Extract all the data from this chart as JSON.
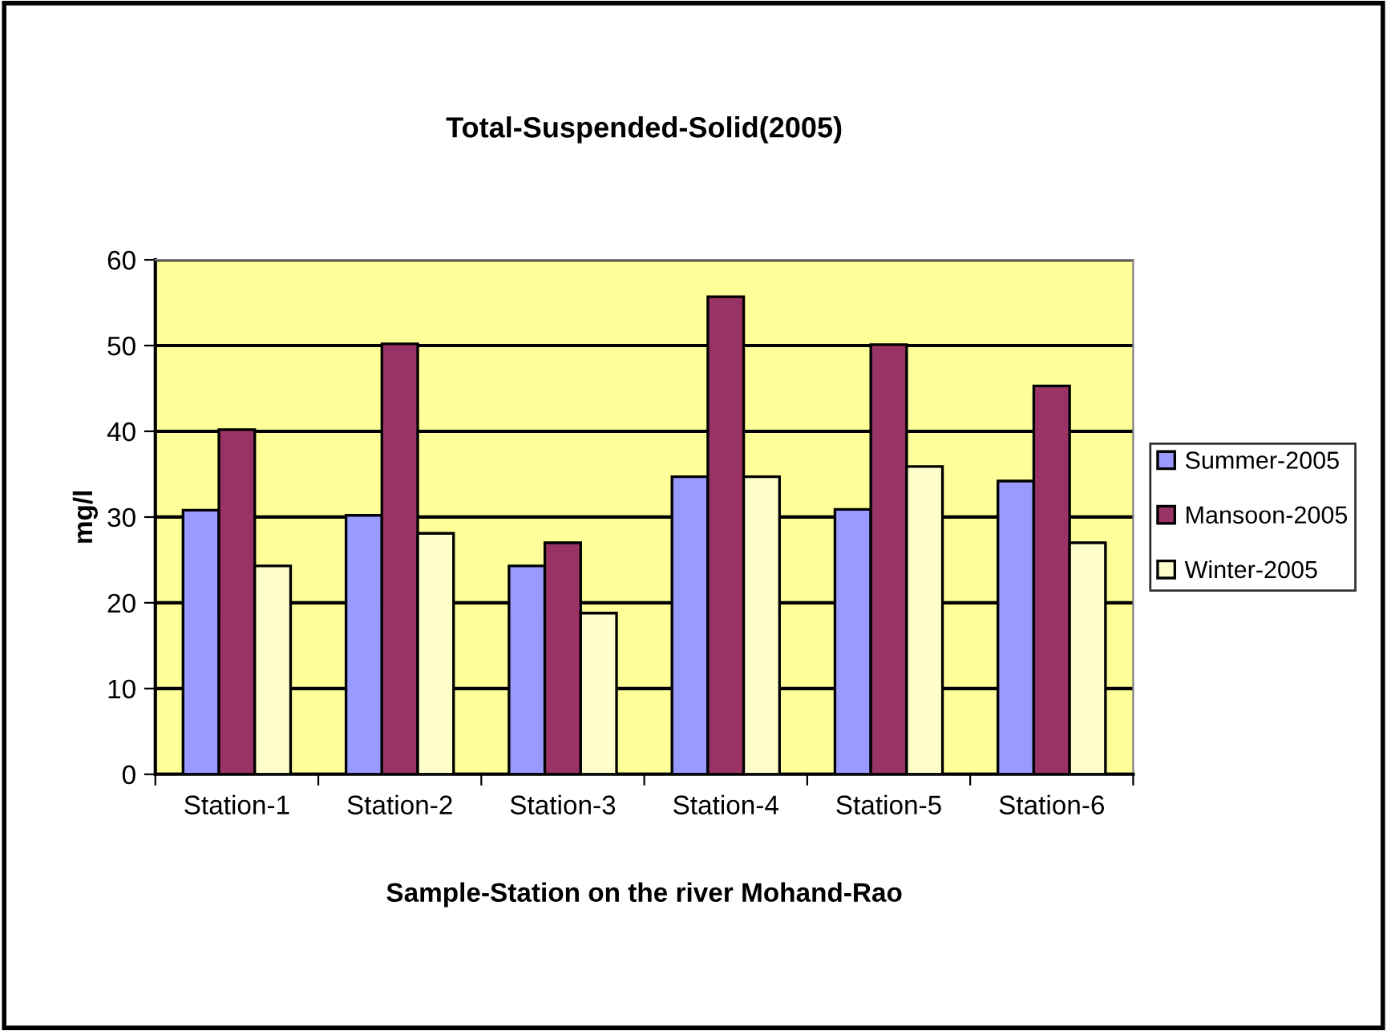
{
  "chart_data": {
    "type": "bar",
    "title": "Total-Suspended-Solid(2005)",
    "xlabel": "Sample-Station on the river Mohand-Rao",
    "ylabel": "mg/l",
    "categories": [
      "Station-1",
      "Station-2",
      "Station-3",
      "Station-4",
      "Station-5",
      "Station-6"
    ],
    "series": [
      {
        "name": "Summer-2005",
        "color": "#9999ff",
        "values": [
          30.8,
          30.2,
          24.3,
          34.7,
          30.9,
          34.2
        ]
      },
      {
        "name": "Mansoon-2005",
        "color": "#993366",
        "values": [
          40.2,
          50.2,
          27.0,
          55.7,
          50.1,
          45.3
        ]
      },
      {
        "name": "Winter-2005",
        "color": "#ffffcc",
        "values": [
          24.3,
          28.1,
          18.8,
          34.7,
          35.9,
          27.0
        ]
      }
    ],
    "ylim": [
      0,
      60
    ],
    "yticks": [
      0,
      10,
      20,
      30,
      40,
      50,
      60
    ],
    "grid": "y",
    "legend": "right"
  }
}
